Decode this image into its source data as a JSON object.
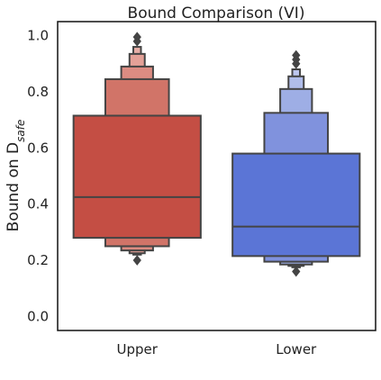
{
  "chart_data": {
    "type": "boxen",
    "title": "Bound Comparison (VI)",
    "ylabel": {
      "main": "Bound on D",
      "sub": "safe"
    },
    "xlabel": "",
    "ylim": [
      -0.05,
      1.05
    ],
    "yticks": [
      "0.0",
      "0.2",
      "0.4",
      "0.6",
      "0.8",
      "1.0"
    ],
    "ytick_values": [
      0.0,
      0.2,
      0.4,
      0.6,
      0.8,
      1.0
    ],
    "categories": [
      "Upper",
      "Lower"
    ],
    "grid": false,
    "colors": {
      "Upper": [
        "#c44e44",
        "#d17468",
        "#dc8c82",
        "#e4a198",
        "#e8aea6"
      ],
      "Lower": [
        "#5b75d6",
        "#8092dd",
        "#9eaee5",
        "#b0bdea",
        "#bcc6ee"
      ],
      "edge": "#444444"
    },
    "series": [
      {
        "category": "Upper",
        "median": 0.425,
        "boxes": [
          {
            "low": 0.28,
            "high": 0.715,
            "width": 1.0
          },
          {
            "low": 0.25,
            "high": 0.845,
            "width": 0.5
          },
          {
            "low": 0.235,
            "high": 0.89,
            "width": 0.25
          },
          {
            "low": 0.225,
            "high": 0.935,
            "width": 0.12
          },
          {
            "low": 0.22,
            "high": 0.96,
            "width": 0.06
          }
        ],
        "outliers": [
          0.2,
          0.98,
          0.995
        ]
      },
      {
        "category": "Lower",
        "median": 0.32,
        "boxes": [
          {
            "low": 0.215,
            "high": 0.58,
            "width": 1.0
          },
          {
            "low": 0.195,
            "high": 0.725,
            "width": 0.5
          },
          {
            "low": 0.185,
            "high": 0.81,
            "width": 0.25
          },
          {
            "low": 0.18,
            "high": 0.855,
            "width": 0.12
          },
          {
            "low": 0.175,
            "high": 0.88,
            "width": 0.06
          }
        ],
        "outliers": [
          0.16,
          0.9,
          0.915,
          0.93
        ]
      }
    ]
  }
}
